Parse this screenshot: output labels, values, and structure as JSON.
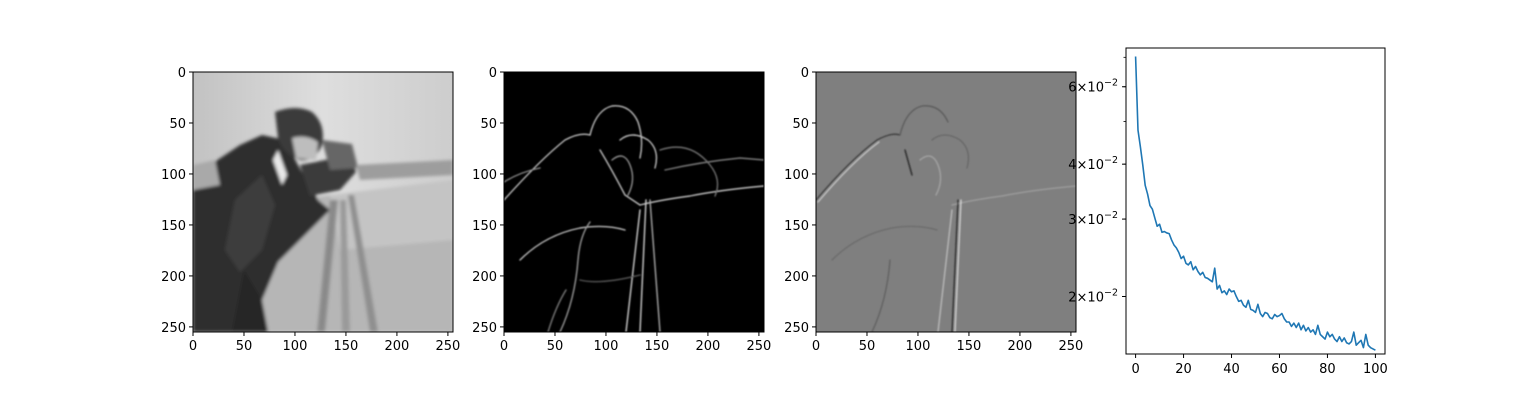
{
  "chart_data": [
    {
      "type": "image",
      "colormap": "gray",
      "xlim": [
        0,
        255
      ],
      "ylim": [
        255,
        0
      ],
      "xticks": [
        "0",
        "50",
        "100",
        "150",
        "200",
        "250"
      ],
      "yticks": [
        "0",
        "50",
        "100",
        "150",
        "200",
        "250"
      ]
    },
    {
      "type": "image",
      "colormap": "gray",
      "xlim": [
        0,
        255
      ],
      "ylim": [
        255,
        0
      ],
      "xticks": [
        "0",
        "50",
        "100",
        "150",
        "200",
        "250"
      ],
      "yticks": [
        "0",
        "50",
        "100",
        "150",
        "200",
        "250"
      ]
    },
    {
      "type": "image",
      "colormap": "gray",
      "xlim": [
        0,
        255
      ],
      "ylim": [
        255,
        0
      ],
      "xticks": [
        "0",
        "50",
        "100",
        "150",
        "200",
        "250"
      ],
      "yticks": [
        "0",
        "50",
        "100",
        "150",
        "200",
        "250"
      ]
    },
    {
      "type": "line",
      "yscale": "log",
      "xlim": [
        -4,
        104
      ],
      "ylim": [
        0.0148,
        0.0735
      ],
      "xticks": [
        0,
        20,
        40,
        60,
        80,
        100
      ],
      "yticks": [
        {
          "value": 0.02,
          "mant": "2",
          "exp": "−2"
        },
        {
          "value": 0.03,
          "mant": "3",
          "exp": "−2"
        },
        {
          "value": 0.04,
          "mant": "4",
          "exp": "−2"
        },
        {
          "value": 0.06,
          "mant": "6",
          "exp": "−2"
        }
      ],
      "series": [
        {
          "color": "#1f77b4",
          "x": [
            0,
            1,
            2,
            3,
            4,
            5,
            6,
            7,
            8,
            9,
            10,
            11,
            12,
            13,
            14,
            15,
            16,
            17,
            18,
            19,
            20,
            21,
            22,
            23,
            24,
            25,
            26,
            27,
            28,
            29,
            30,
            31,
            32,
            33,
            34,
            35,
            36,
            37,
            38,
            39,
            40,
            41,
            42,
            43,
            44,
            45,
            46,
            47,
            48,
            49,
            50,
            51,
            52,
            53,
            54,
            55,
            56,
            57,
            58,
            59,
            60,
            61,
            62,
            63,
            64,
            65,
            66,
            67,
            68,
            69,
            70,
            71,
            72,
            73,
            74,
            75,
            76,
            77,
            78,
            79,
            80,
            81,
            82,
            83,
            84,
            85,
            86,
            87,
            88,
            89,
            90,
            91,
            92,
            93,
            94,
            95,
            96,
            97,
            98,
            99,
            100
          ],
          "y": [
            0.0703,
            0.0478,
            0.0438,
            0.0398,
            0.0358,
            0.0342,
            0.0322,
            0.0316,
            0.0302,
            0.0289,
            0.0292,
            0.028,
            0.0281,
            0.0279,
            0.0278,
            0.0269,
            0.0262,
            0.0258,
            0.0252,
            0.0244,
            0.0247,
            0.0238,
            0.0236,
            0.024,
            0.023,
            0.0234,
            0.0228,
            0.0224,
            0.0227,
            0.0221,
            0.022,
            0.0218,
            0.0216,
            0.0232,
            0.0208,
            0.0212,
            0.0204,
            0.0206,
            0.0202,
            0.0208,
            0.0205,
            0.0206,
            0.02,
            0.0195,
            0.0196,
            0.0191,
            0.0189,
            0.0196,
            0.0187,
            0.0186,
            0.0184,
            0.0192,
            0.0183,
            0.018,
            0.0184,
            0.0183,
            0.0179,
            0.0178,
            0.0182,
            0.018,
            0.0181,
            0.0183,
            0.0178,
            0.0175,
            0.0175,
            0.0171,
            0.0174,
            0.017,
            0.0174,
            0.0168,
            0.0172,
            0.0167,
            0.017,
            0.0166,
            0.0168,
            0.0164,
            0.0172,
            0.0164,
            0.0162,
            0.016,
            0.0166,
            0.0162,
            0.0164,
            0.016,
            0.0158,
            0.0162,
            0.0158,
            0.0161,
            0.0157,
            0.0156,
            0.0158,
            0.0166,
            0.0155,
            0.0157,
            0.0159,
            0.0153,
            0.0164,
            0.0155,
            0.0153,
            0.0152,
            0.0151
          ]
        }
      ]
    }
  ]
}
